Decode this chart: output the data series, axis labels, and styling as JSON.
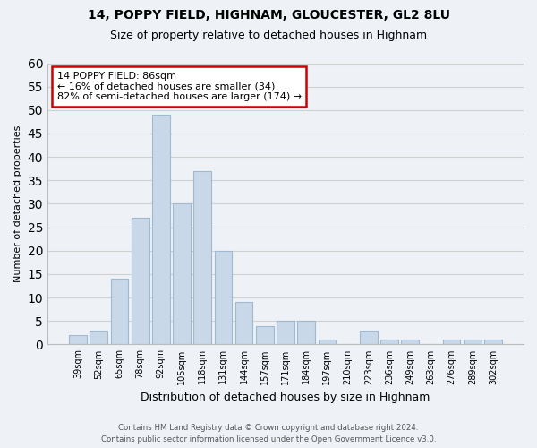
{
  "title": "14, POPPY FIELD, HIGHNAM, GLOUCESTER, GL2 8LU",
  "subtitle": "Size of property relative to detached houses in Highnam",
  "xlabel": "Distribution of detached houses by size in Highnam",
  "ylabel": "Number of detached properties",
  "categories": [
    "39sqm",
    "52sqm",
    "65sqm",
    "78sqm",
    "92sqm",
    "105sqm",
    "118sqm",
    "131sqm",
    "144sqm",
    "157sqm",
    "171sqm",
    "184sqm",
    "197sqm",
    "210sqm",
    "223sqm",
    "236sqm",
    "249sqm",
    "263sqm",
    "276sqm",
    "289sqm",
    "302sqm"
  ],
  "values": [
    2,
    3,
    14,
    27,
    49,
    30,
    37,
    20,
    9,
    4,
    5,
    5,
    1,
    0,
    3,
    1,
    1,
    0,
    1,
    1,
    1
  ],
  "bar_color": "#c8d8e8",
  "bar_edge_color": "#a0b8d0",
  "ylim": [
    0,
    60
  ],
  "yticks": [
    0,
    5,
    10,
    15,
    20,
    25,
    30,
    35,
    40,
    45,
    50,
    55,
    60
  ],
  "grid_color": "#d0d0d0",
  "background_color": "#eef2f7",
  "annotation_line1": "14 POPPY FIELD: 86sqm",
  "annotation_line2": "← 16% of detached houses are smaller (34)",
  "annotation_line3": "82% of semi-detached houses are larger (174) →",
  "annotation_box_color": "#ffffff",
  "annotation_box_edge_color": "#cc0000",
  "footer_line1": "Contains HM Land Registry data © Crown copyright and database right 2024.",
  "footer_line2": "Contains public sector information licensed under the Open Government Licence v3.0."
}
